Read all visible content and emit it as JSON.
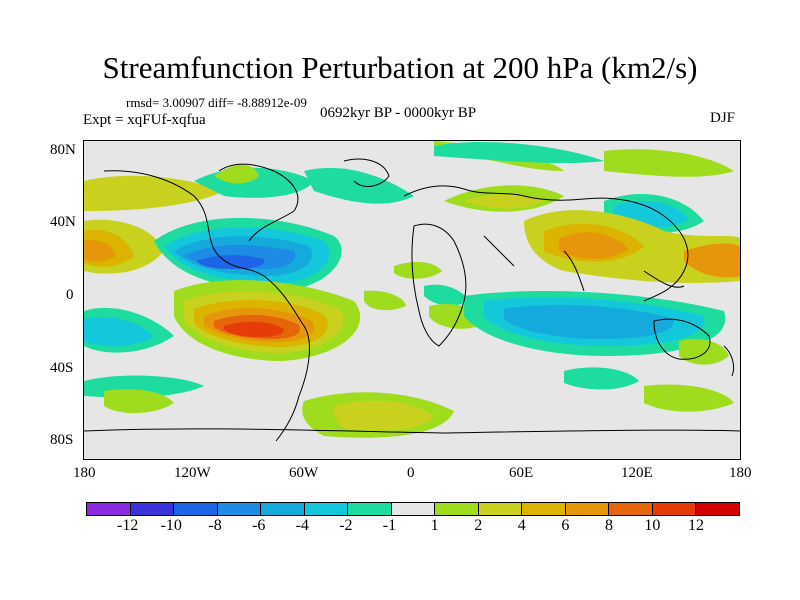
{
  "title": "Streamfunction Perturbation at 200 hPa (km2/s)",
  "stats": "rmsd= 3.00907 diff= -8.88912e-09",
  "experiment": "Expt = xqFUf-xqfua",
  "period": "0692kyr BP - 0000kyr BP",
  "season": "DJF",
  "y_axis_labels": [
    "80N",
    "40N",
    "0",
    "40S",
    "80S"
  ],
  "x_axis_labels": [
    "180",
    "120W",
    "60W",
    "0",
    "60E",
    "120E",
    "180"
  ],
  "colorbar": {
    "colors": [
      "#8a2be2",
      "#3c32dc",
      "#1e64e6",
      "#1e8ce6",
      "#14aadc",
      "#14c8dc",
      "#1edca0",
      "#e6e6e6",
      "#a0dc1e",
      "#c8d21e",
      "#dcb400",
      "#e6960a",
      "#e6640a",
      "#e63c0a",
      "#d20000"
    ],
    "labels": [
      "-12",
      "-10",
      "-8",
      "-6",
      "-4",
      "-2",
      "-1",
      "1",
      "2",
      "4",
      "6",
      "8",
      "10",
      "12"
    ]
  }
}
